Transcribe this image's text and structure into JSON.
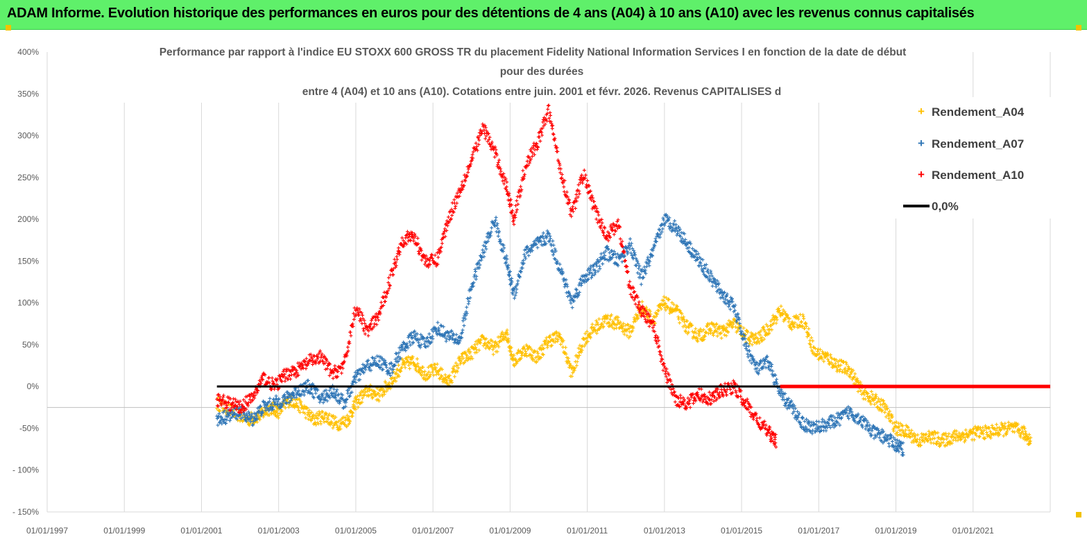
{
  "banner": {
    "title": "ADAM Informe. Evolution historique des performances en euros pour des détentions de 4 ans (A04) à 10 ans (A10) avec les revenus connus capitalisés"
  },
  "colors": {
    "banner_bg": "#5ff06a",
    "a04": "#ffc000",
    "a07": "#2e75b6",
    "a10": "#ff0000",
    "zero": "#000000"
  },
  "chart_data": {
    "type": "scatter",
    "title_lines": [
      "Performance par rapport à l'indice EU STOXX 600 GROSS TR  du placement Fidelity National Information Services I en fonction de la date de début",
      "pour des durées",
      "entre 4 (A04) et 10 ans (A10). Cotations entre juin. 2001 et févr. 2026. Revenus CAPITALISES d"
    ],
    "y_ticks": [
      {
        "value": 400,
        "label": "400%"
      },
      {
        "value": 350,
        "label": "350%"
      },
      {
        "value": 300,
        "label": "300%"
      },
      {
        "value": 250,
        "label": "250%"
      },
      {
        "value": 200,
        "label": "200%"
      },
      {
        "value": 150,
        "label": "150%"
      },
      {
        "value": 100,
        "label": "100%"
      },
      {
        "value": 50,
        "label": "50%"
      },
      {
        "value": 0,
        "label": "0%"
      },
      {
        "value": -50,
        "label": "-50%"
      },
      {
        "value": -100,
        "label": "- 100%"
      },
      {
        "value": -150,
        "label": "- 150%"
      }
    ],
    "ylim": [
      -150,
      400
    ],
    "xlim": [
      1997.0,
      2023.0
    ],
    "x_ticks": [
      {
        "value": 1997,
        "label": "01/01/1997"
      },
      {
        "value": 1999,
        "label": "01/01/1999"
      },
      {
        "value": 2001,
        "label": "01/01/2001"
      },
      {
        "value": 2003,
        "label": "01/01/2003"
      },
      {
        "value": 2005,
        "label": "01/01/2005"
      },
      {
        "value": 2007,
        "label": "01/01/2007"
      },
      {
        "value": 2009,
        "label": "01/01/2009"
      },
      {
        "value": 2011,
        "label": "01/01/2011"
      },
      {
        "value": 2013,
        "label": "01/01/2013"
      },
      {
        "value": 2015,
        "label": "01/01/2015"
      },
      {
        "value": 2017,
        "label": "01/01/2017"
      },
      {
        "value": 2019,
        "label": "01/01/2019"
      },
      {
        "value": 2021,
        "label": "01/01/2021"
      }
    ],
    "series": [
      {
        "name": "Rendement_A04",
        "color": "#ffc000",
        "x": [
          2001.4,
          2001.8,
          2002.2,
          2002.5,
          2002.8,
          2003.0,
          2003.3,
          2003.6,
          2003.9,
          2004.2,
          2004.5,
          2004.8,
          2005.0,
          2005.3,
          2005.6,
          2005.9,
          2006.2,
          2006.5,
          2006.8,
          2007.1,
          2007.4,
          2007.7,
          2008.0,
          2008.3,
          2008.6,
          2008.9,
          2009.1,
          2009.4,
          2009.7,
          2010.0,
          2010.3,
          2010.6,
          2010.9,
          2011.2,
          2011.5,
          2011.8,
          2012.1,
          2012.4,
          2012.7,
          2013.0,
          2013.3,
          2013.6,
          2013.9,
          2014.2,
          2014.5,
          2014.8,
          2015.1,
          2015.4,
          2015.7,
          2016.0,
          2016.3,
          2016.6,
          2016.9,
          2017.2,
          2017.5,
          2017.8,
          2018.1,
          2018.4,
          2018.7,
          2019.0,
          2019.3,
          2019.6,
          2019.9,
          2020.2,
          2020.5,
          2020.8,
          2021.1,
          2021.4,
          2021.7,
          2022.0,
          2022.3,
          2022.5
        ],
        "y": [
          -20,
          -30,
          -40,
          -35,
          -25,
          -30,
          -15,
          -25,
          -40,
          -35,
          -45,
          -40,
          -20,
          -5,
          -10,
          5,
          25,
          30,
          15,
          20,
          5,
          30,
          40,
          55,
          45,
          65,
          30,
          45,
          35,
          55,
          60,
          15,
          55,
          70,
          80,
          75,
          65,
          95,
          80,
          100,
          90,
          70,
          60,
          70,
          65,
          75,
          60,
          55,
          70,
          90,
          75,
          80,
          40,
          35,
          25,
          20,
          -5,
          -15,
          -25,
          -50,
          -55,
          -65,
          -60,
          -65,
          -60,
          -58,
          -55,
          -55,
          -52,
          -50,
          -55,
          -65
        ]
      },
      {
        "name": "Rendement_A07",
        "color": "#2e75b6",
        "x": [
          2001.4,
          2001.7,
          2002.0,
          2002.3,
          2002.6,
          2002.9,
          2003.2,
          2003.5,
          2003.8,
          2004.1,
          2004.4,
          2004.7,
          2005.0,
          2005.3,
          2005.6,
          2005.9,
          2006.2,
          2006.5,
          2006.8,
          2007.1,
          2007.4,
          2007.7,
          2008.0,
          2008.3,
          2008.6,
          2008.9,
          2009.1,
          2009.4,
          2009.7,
          2010.0,
          2010.3,
          2010.6,
          2010.9,
          2011.2,
          2011.5,
          2011.8,
          2012.1,
          2012.4,
          2012.7,
          2013.0,
          2013.3,
          2013.6,
          2013.9,
          2014.2,
          2014.5,
          2014.8,
          2015.1,
          2015.4,
          2015.7,
          2016.0,
          2016.3,
          2016.6,
          2016.9,
          2017.2,
          2017.5,
          2017.8,
          2018.1,
          2018.4,
          2018.7,
          2019.0,
          2019.2
        ],
        "y": [
          -40,
          -35,
          -30,
          -40,
          -25,
          -20,
          -15,
          -5,
          0,
          -15,
          -5,
          -20,
          10,
          25,
          30,
          20,
          45,
          60,
          50,
          70,
          60,
          55,
          120,
          160,
          200,
          150,
          110,
          160,
          170,
          180,
          140,
          100,
          130,
          140,
          160,
          150,
          170,
          130,
          160,
          200,
          190,
          170,
          150,
          130,
          110,
          95,
          50,
          20,
          30,
          -10,
          -25,
          -45,
          -50,
          -45,
          -40,
          -30,
          -40,
          -55,
          -60,
          -70,
          -75
        ]
      },
      {
        "name": "Rendement_A10",
        "color": "#ff0000",
        "x": [
          2001.4,
          2001.7,
          2002.0,
          2002.3,
          2002.6,
          2002.9,
          2003.2,
          2003.5,
          2003.8,
          2004.1,
          2004.4,
          2004.7,
          2005.0,
          2005.3,
          2005.6,
          2005.9,
          2006.2,
          2006.5,
          2006.8,
          2007.1,
          2007.4,
          2007.7,
          2008.0,
          2008.3,
          2008.6,
          2008.9,
          2009.1,
          2009.4,
          2009.7,
          2010.0,
          2010.3,
          2010.6,
          2010.9,
          2011.2,
          2011.5,
          2011.8,
          2012.1,
          2012.4,
          2012.7,
          2013.0,
          2013.3,
          2013.6,
          2013.9,
          2014.2,
          2014.5,
          2014.8,
          2015.1,
          2015.4,
          2015.7,
          2015.9
        ],
        "y": [
          -15,
          -20,
          -25,
          -15,
          10,
          0,
          15,
          20,
          30,
          35,
          15,
          25,
          95,
          65,
          85,
          130,
          175,
          180,
          150,
          150,
          200,
          235,
          270,
          310,
          280,
          240,
          200,
          265,
          290,
          330,
          260,
          205,
          255,
          210,
          180,
          195,
          120,
          90,
          75,
          20,
          -15,
          -20,
          -10,
          -15,
          -5,
          0,
          -20,
          -40,
          -55,
          -65
        ]
      }
    ],
    "zero_line": {
      "name": "0,0%",
      "x_start": 2001.4,
      "x_end": 2023.0,
      "value": 0
    },
    "a10_flat": {
      "x_start": 2016.0,
      "x_end": 2023.0,
      "value": 0
    }
  }
}
